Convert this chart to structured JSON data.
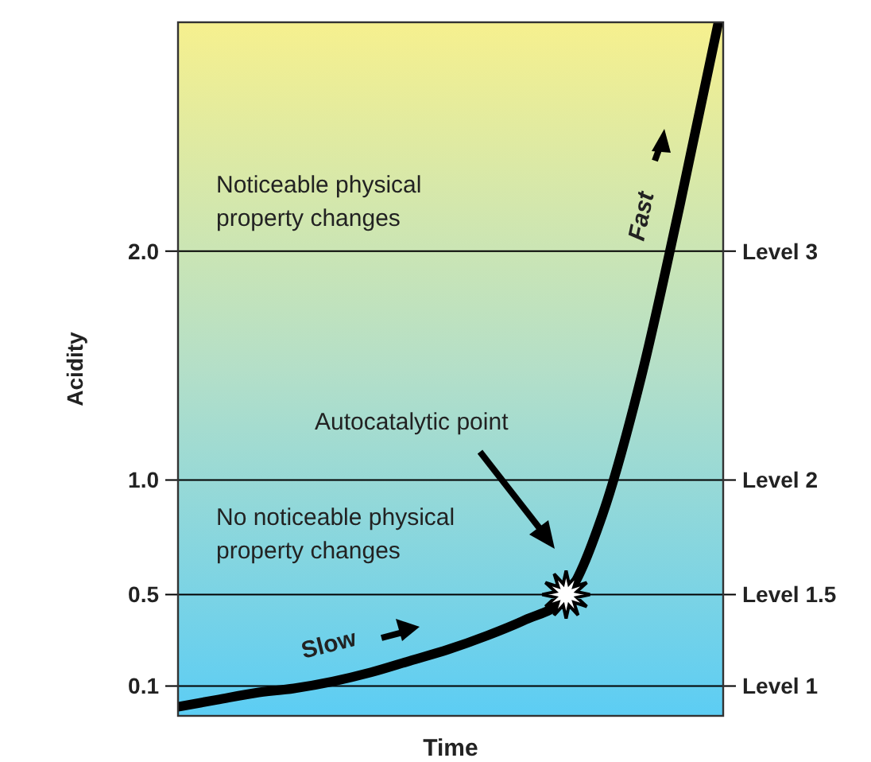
{
  "chart_data": {
    "type": "line",
    "xlabel": "Time",
    "ylabel": "Acidity",
    "categories": [
      null,
      null,
      null,
      null,
      null,
      null,
      null,
      null,
      null,
      null,
      null,
      null,
      null,
      null,
      null
    ],
    "series": [
      {
        "color": "#000000",
        "values": [
          0.01,
          0.04,
          0.07,
          0.09,
          0.12,
          0.16,
          0.21,
          0.26,
          0.32,
          0.39,
          0.48,
          0.85,
          1.45,
          2.2,
          3.0
        ]
      }
    ],
    "ylim": [
      -0.03,
      3.0
    ],
    "yticks": [
      {
        "value": 0.1,
        "label": "0.1"
      },
      {
        "value": 0.5,
        "label": "0.5"
      },
      {
        "value": 1,
        "label": "1.0"
      },
      {
        "value": 2,
        "label": "2.0"
      }
    ],
    "ref_lines": [
      {
        "axis": "y",
        "value": 2,
        "label": "Level 3",
        "color": "#000000"
      },
      {
        "axis": "y",
        "value": 1,
        "label": "Level 2",
        "color": "#000000"
      },
      {
        "axis": "y",
        "value": 0.5,
        "label": "Level 1.5",
        "color": "#000000"
      },
      {
        "axis": "y",
        "value": 0.1,
        "label": "Level 1",
        "color": "#000000"
      }
    ],
    "annotations": [
      "Noticeable physical property changes",
      "No noticeable physical property changes",
      "Autocatalytic point",
      "Slow",
      "Fast"
    ],
    "grid": false,
    "marker": "none",
    "line_style": "solid"
  }
}
